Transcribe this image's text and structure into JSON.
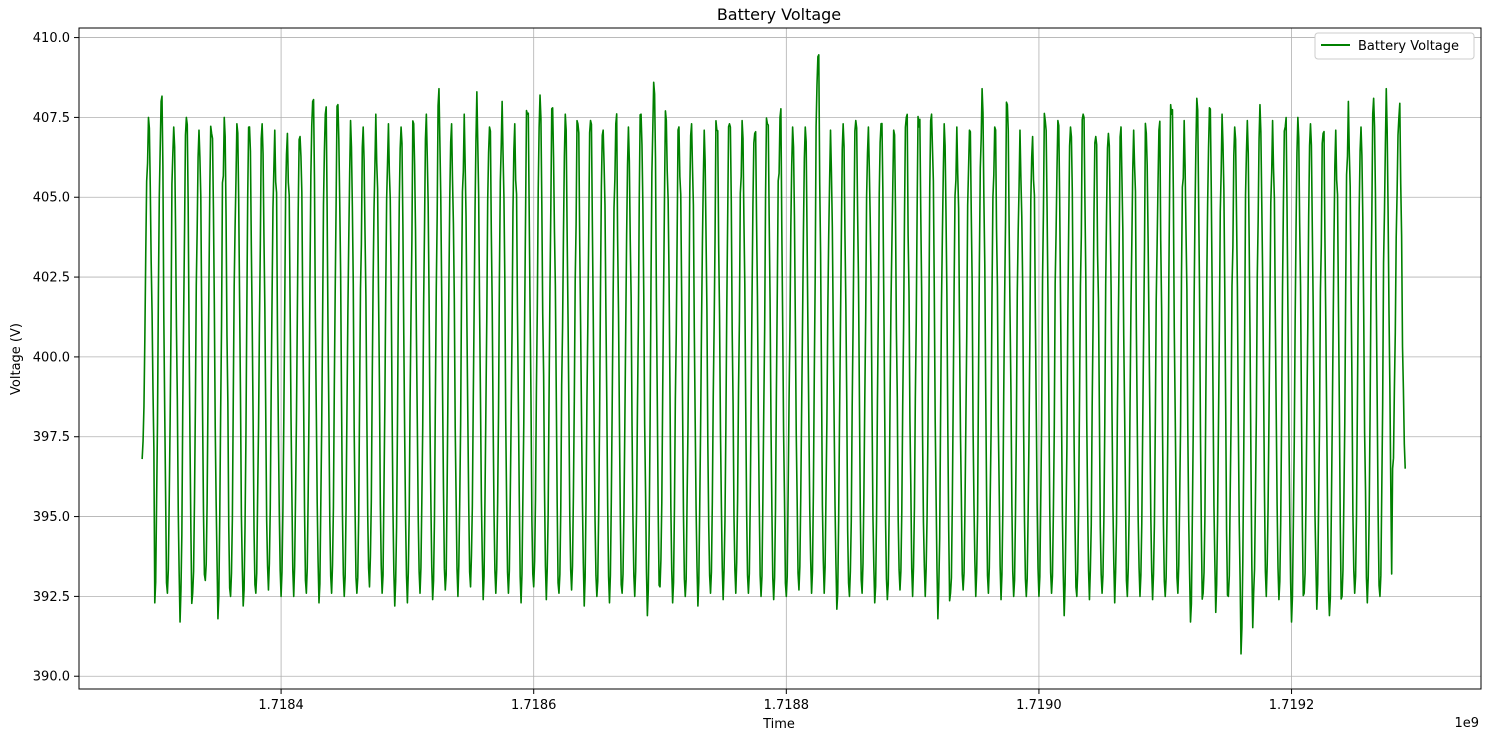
{
  "chart_data": {
    "type": "line",
    "title": "Battery Voltage",
    "xlabel": "Time",
    "ylabel": "Voltage (V)",
    "x_offset_label": "1e9",
    "xlim": [
      1.71824,
      1.71935
    ],
    "ylim": [
      389.6,
      410.3
    ],
    "xticks": [
      1.7184,
      1.7186,
      1.7188,
      1.719,
      1.7192
    ],
    "xtick_labels": [
      "1.7184",
      "1.7186",
      "1.7188",
      "1.7190",
      "1.7192"
    ],
    "yticks": [
      390.0,
      392.5,
      395.0,
      397.5,
      400.0,
      402.5,
      405.0,
      407.5,
      410.0
    ],
    "ytick_labels": [
      "390.0",
      "392.5",
      "395.0",
      "397.5",
      "400.0",
      "402.5",
      "405.0",
      "407.5",
      "410.0"
    ],
    "grid": true,
    "legend_position": "upper right",
    "series": [
      {
        "name": "Battery Voltage",
        "color": "#008000",
        "x_start": 1.71829,
        "x_end": 1.71929,
        "cycles": 100,
        "x": [
          1.71829,
          1.71839,
          1.71849,
          1.71859,
          1.71869,
          1.71879,
          1.71889,
          1.71899,
          1.71909,
          1.71919,
          1.71929
        ],
        "peaks": [
          407.5,
          408.0,
          407.2,
          407.5,
          407.1,
          407.0,
          407.5,
          407.3,
          407.2,
          407.3,
          407.1,
          407.0,
          406.9,
          408.0,
          407.6,
          407.9,
          407.4,
          407.2,
          407.6,
          407.3,
          407.2,
          407.3,
          407.6,
          408.4,
          407.3,
          407.6,
          408.3,
          407.2,
          408.0,
          407.3,
          407.6,
          408.2,
          407.8,
          407.6,
          407.3,
          407.4,
          407.1,
          407.3,
          407.2,
          407.6,
          408.6,
          407.4,
          407.2,
          407.3,
          407.1,
          407.1,
          407.3,
          407.4,
          407.0,
          407.3,
          407.5,
          407.2,
          407.2,
          409.4,
          407.1,
          407.3,
          407.4,
          407.2,
          407.3,
          407.1,
          407.5,
          407.2,
          407.6,
          407.3,
          407.2,
          407.1,
          408.4,
          407.2,
          407.9,
          407.1,
          406.9,
          407.4,
          407.4,
          407.2,
          407.6,
          406.9,
          407.0,
          407.2,
          407.1,
          407.0,
          407.1,
          407.6,
          407.4,
          408.1,
          407.8,
          407.6,
          407.2,
          407.4,
          407.9,
          407.4,
          407.2,
          407.5,
          407.3,
          407.0,
          407.1,
          408.0,
          407.2,
          408.1,
          408.4,
          407.5
        ],
        "troughs": [
          396.8,
          392.3,
          392.6,
          391.7,
          392.6,
          393.0,
          391.8,
          392.5,
          392.2,
          392.6,
          392.7,
          392.5,
          392.5,
          392.6,
          392.3,
          392.6,
          392.5,
          392.6,
          392.8,
          392.6,
          392.2,
          392.3,
          392.6,
          392.4,
          392.7,
          392.5,
          392.8,
          392.4,
          392.6,
          392.6,
          392.3,
          392.8,
          392.4,
          392.6,
          392.7,
          392.2,
          392.5,
          392.3,
          392.6,
          392.5,
          391.9,
          392.8,
          392.3,
          392.5,
          392.2,
          392.6,
          392.4,
          392.6,
          392.6,
          392.5,
          392.4,
          392.5,
          392.7,
          392.6,
          392.6,
          392.1,
          392.5,
          392.6,
          392.3,
          392.4,
          392.7,
          392.5,
          392.5,
          391.8,
          392.6,
          392.7,
          392.5,
          392.6,
          392.4,
          392.5,
          392.5,
          392.5,
          392.6,
          391.9,
          392.5,
          392.4,
          392.6,
          392.3,
          392.5,
          392.5,
          392.4,
          392.5,
          392.6,
          391.7,
          392.6,
          392.0,
          392.5,
          390.7,
          392.6,
          392.5,
          392.4,
          391.7,
          392.6,
          392.1,
          391.9,
          392.5,
          392.6,
          392.3,
          392.5,
          396.5
        ]
      }
    ]
  }
}
